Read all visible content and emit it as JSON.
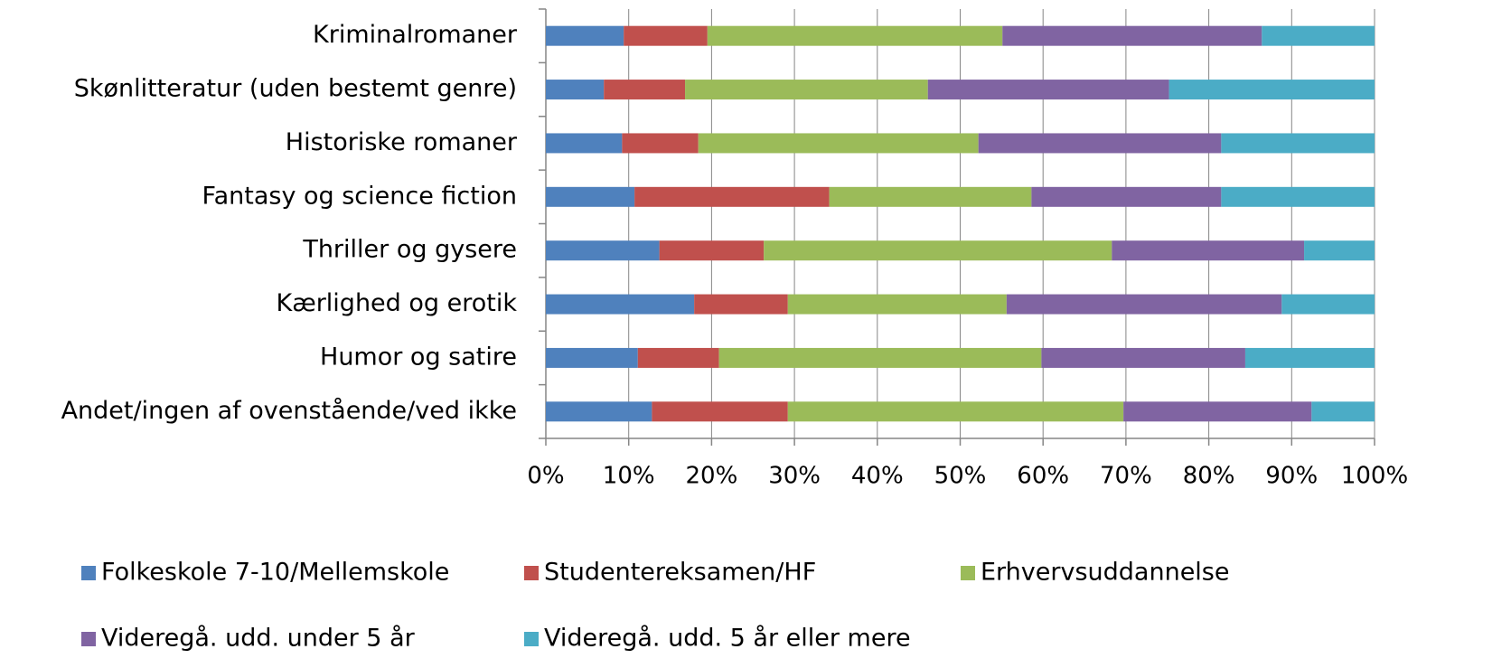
{
  "chart_data": {
    "type": "stacked_barh",
    "categories": [
      "Kriminalromaner",
      "Skønlitteratur (uden bestemt genre)",
      "Historiske romaner",
      "Fantasy og science fiction",
      "Thriller og gysere",
      "Kærlighed og erotik",
      "Humor og satire",
      "Andet/ingen af ovenstående/ved ikke"
    ],
    "series": [
      {
        "name": "Folkeskole 7-10/Mellemskole",
        "color": "#4f81bd",
        "values": [
          9.4,
          7.0,
          9.2,
          10.7,
          13.7,
          17.9,
          11.1,
          12.8
        ]
      },
      {
        "name": "Studentereksamen/HF",
        "color": "#c0504d",
        "values": [
          10.1,
          9.8,
          9.2,
          23.5,
          12.6,
          11.3,
          9.8,
          16.4
        ]
      },
      {
        "name": "Erhvervsuddannelse",
        "color": "#9bbb59",
        "values": [
          35.6,
          29.3,
          33.8,
          24.4,
          42.0,
          26.4,
          38.9,
          40.5
        ]
      },
      {
        "name": "Videregå. udd. under 5 år",
        "color": "#8064a2",
        "values": [
          31.3,
          29.1,
          29.3,
          22.9,
          23.2,
          33.2,
          24.6,
          22.7
        ]
      },
      {
        "name": "Videregå. udd. 5 år eller mere",
        "color": "#4bacc6",
        "values": [
          13.6,
          24.8,
          18.5,
          18.5,
          8.5,
          11.2,
          15.6,
          7.6
        ]
      }
    ],
    "xlim": [
      0,
      100
    ],
    "xticks": [
      {
        "value": 0,
        "label": "0%"
      },
      {
        "value": 10,
        "label": "10%"
      },
      {
        "value": 20,
        "label": "20%"
      },
      {
        "value": 30,
        "label": "30%"
      },
      {
        "value": 40,
        "label": "40%"
      },
      {
        "value": 50,
        "label": "50%"
      },
      {
        "value": 60,
        "label": "60%"
      },
      {
        "value": 70,
        "label": "70%"
      },
      {
        "value": 80,
        "label": "80%"
      },
      {
        "value": 90,
        "label": "90%"
      },
      {
        "value": 100,
        "label": "100%"
      }
    ],
    "grid": true,
    "legend": "bottom"
  }
}
